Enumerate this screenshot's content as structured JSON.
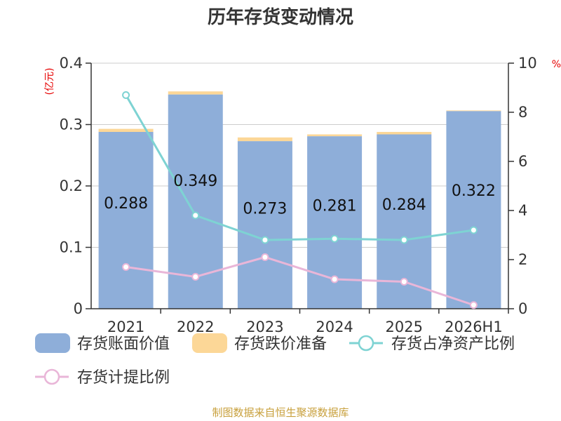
{
  "chart_data": {
    "type": "bar",
    "title": "历年存货变动情况",
    "categories": [
      "2021",
      "2022",
      "2023",
      "2024",
      "2025",
      "2026H1"
    ],
    "left_unit": "(亿元)",
    "right_unit": "%",
    "ylim": [
      0,
      0.4
    ],
    "y_ticks": [
      "0",
      "0.1",
      "0.2",
      "0.3",
      "0.4"
    ],
    "y2lim": [
      0,
      10
    ],
    "y2_ticks": [
      "0",
      "2",
      "4",
      "6",
      "8",
      "10"
    ],
    "grid": true,
    "legend_position": "bottom",
    "series": [
      {
        "name": "存货账面价值",
        "kind": "bar",
        "color": "#8eaed9",
        "values": [
          0.288,
          0.349,
          0.273,
          0.281,
          0.284,
          0.322
        ],
        "labels": [
          "0.288",
          "0.349",
          "0.273",
          "0.281",
          "0.284",
          "0.322"
        ]
      },
      {
        "name": "存货跌价准备",
        "kind": "bar-stack",
        "color": "#fcd797",
        "values": [
          0.005,
          0.005,
          0.006,
          0.003,
          0.004,
          0.001
        ]
      },
      {
        "name": "存货占净资产比例",
        "kind": "line",
        "axis": "right",
        "color": "#7ed3d3",
        "values": [
          8.7,
          3.8,
          2.8,
          2.85,
          2.8,
          3.2
        ]
      },
      {
        "name": "存货计提比例",
        "kind": "line",
        "axis": "right",
        "color": "#e9b6d8",
        "values": [
          1.7,
          1.3,
          2.1,
          1.2,
          1.1,
          0.15
        ]
      }
    ],
    "source": "制图数据来自恒生聚源数据库"
  }
}
